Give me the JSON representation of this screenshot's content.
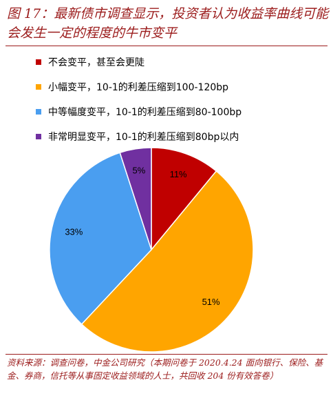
{
  "title": "图 17：最新债市调查显示，投资者认为收益率曲线可能会发生一定的程度的牛市变平",
  "footer": "资料来源：调查问卷，中金公司研究（本期问卷于 2020.4.24 面向银行、保险、基金、券商，信托等从事固定收益领域的人士，共回收 204 份有效答卷）",
  "chart_data": {
    "type": "pie",
    "title": "图 17：最新债市调查显示，投资者认为收益率曲线可能会发生一定的程度的牛市变平",
    "slices": [
      {
        "label": "不会变平，甚至会更陡",
        "value": 11,
        "display": "11%",
        "color": "#c00000"
      },
      {
        "label": "小幅变平，10-1的利差压缩到100-120bp",
        "value": 51,
        "display": "51%",
        "color": "#ffa500"
      },
      {
        "label": "中等幅度变平，10-1的利差压缩到80-100bp",
        "value": 33,
        "display": "33%",
        "color": "#4a9ef0"
      },
      {
        "label": "非常明显变平，10-1的利差压缩到80bp以内",
        "value": 5,
        "display": "5%",
        "color": "#7030a0"
      }
    ],
    "legend_position": "top",
    "start_angle_deg": 0,
    "direction": "clockwise"
  }
}
